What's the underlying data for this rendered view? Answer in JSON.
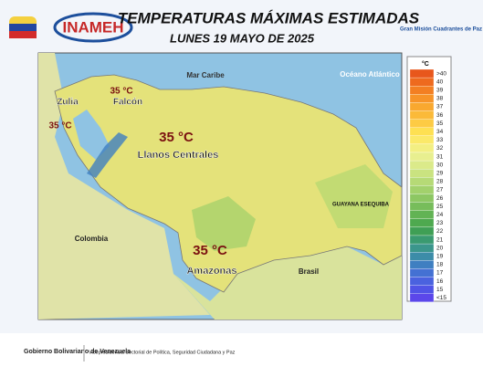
{
  "header": {
    "logo": "INAMEH",
    "title": "TEMPERATURAS MÁXIMAS ESTIMADAS",
    "subtitle": "LUNES 19 MAYO DE 2025",
    "partner": "Gran Misión Cuadrantes de Paz"
  },
  "map": {
    "places": [
      "Mar Caribe",
      "Océano Atlántico",
      "Colombia",
      "Brasil",
      "GUAYANA ESEQUIBA"
    ],
    "regions": [
      {
        "name": "Zulia",
        "temp": "35 °C"
      },
      {
        "name": "Falcón",
        "temp": "35 °C"
      },
      {
        "name": "Llanos Centrales",
        "temp": "35 °C"
      },
      {
        "name": "Amazonas",
        "temp": "35 °C"
      }
    ]
  },
  "legend": {
    "unit": "°C",
    "labels": [
      ">40",
      40,
      39,
      38,
      37,
      36,
      35,
      34,
      33,
      32,
      31,
      30,
      29,
      28,
      27,
      26,
      25,
      24,
      23,
      22,
      21,
      20,
      19,
      18,
      17,
      16,
      15,
      "<15"
    ],
    "colors": [
      "#e8571c",
      "#ee6a1e",
      "#f37f22",
      "#f79428",
      "#f9a82f",
      "#fbba39",
      "#fdcb44",
      "#fee052",
      "#fbe969",
      "#f3ef82",
      "#e8ef8f",
      "#dbea8a",
      "#cae380",
      "#b6da76",
      "#a2d16c",
      "#8dc763",
      "#77bd5b",
      "#62b354",
      "#4ea94f",
      "#3f9f55",
      "#3a9a70",
      "#3b968c",
      "#3c8ca8",
      "#3f7fc1",
      "#4471d3",
      "#4a62df",
      "#5054e6",
      "#5b47ea"
    ]
  },
  "footer": {
    "gov": "Gobierno Bolivariano de Venezuela",
    "office": "Vicepresidencia Sectorial de Política, Seguridad Ciudadana y Paz"
  }
}
